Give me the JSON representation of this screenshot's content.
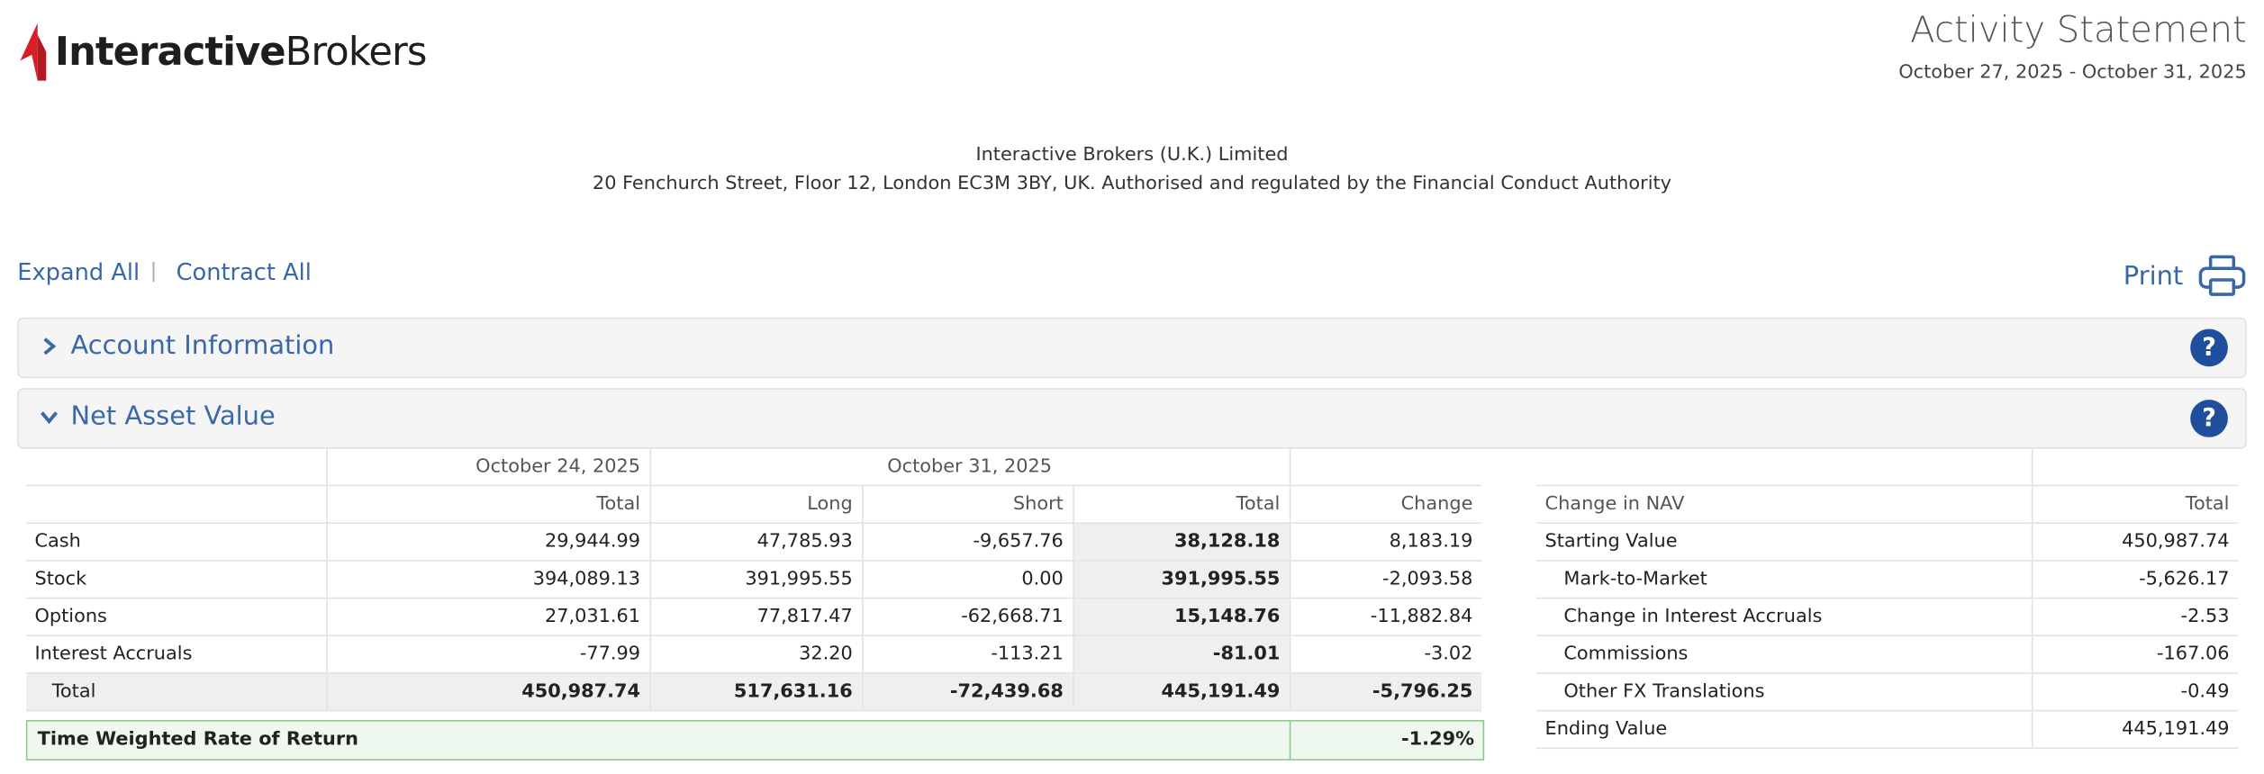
{
  "header": {
    "logo_bold": "Interactive",
    "logo_light": "Brokers",
    "title": "Activity Statement",
    "period": "October 27, 2025 - October 31, 2025"
  },
  "company": {
    "name": "Interactive Brokers (U.K.) Limited",
    "address": "20 Fenchurch Street, Floor 12, London EC3M 3BY, UK. Authorised and regulated by the Financial Conduct Authority"
  },
  "toolbar": {
    "expand": "Expand All",
    "separator": "|",
    "contract": "Contract All",
    "print": "Print"
  },
  "sections": [
    {
      "title": "Account Information",
      "expanded": false,
      "help": "?"
    },
    {
      "title": "Net Asset Value",
      "expanded": true,
      "help": "?"
    }
  ],
  "nav_table": {
    "group_headers": [
      "October 24, 2025",
      "October 31, 2025"
    ],
    "columns": [
      "Total",
      "Long",
      "Short",
      "Total",
      "Change"
    ],
    "rows": [
      [
        "Cash",
        "29,944.99",
        "47,785.93",
        "-9,657.76",
        "38,128.18",
        "8,183.19"
      ],
      [
        "Stock",
        "394,089.13",
        "391,995.55",
        "0.00",
        "391,995.55",
        "-2,093.58"
      ],
      [
        "Options",
        "27,031.61",
        "77,817.47",
        "-62,668.71",
        "15,148.76",
        "-11,882.84"
      ],
      [
        "Interest Accruals",
        "-77.99",
        "32.20",
        "-113.21",
        "-81.01",
        "-3.02"
      ]
    ],
    "total_row": [
      "Total",
      "450,987.74",
      "517,631.16",
      "-72,439.68",
      "445,191.49",
      "-5,796.25"
    ]
  },
  "twr": {
    "label": "Time Weighted Rate of Return",
    "value": "-1.29%"
  },
  "change_table": {
    "columns": [
      "Change in NAV",
      "Total"
    ],
    "rows": [
      {
        "label": "Starting Value",
        "value": "450,987.74",
        "indent": false
      },
      {
        "label": "Mark-to-Market",
        "value": "-5,626.17",
        "indent": true
      },
      {
        "label": "Change in Interest Accruals",
        "value": "-2.53",
        "indent": true
      },
      {
        "label": "Commissions",
        "value": "-167.06",
        "indent": true
      },
      {
        "label": "Other FX Translations",
        "value": "-0.49",
        "indent": true
      },
      {
        "label": "Ending Value",
        "value": "445,191.49",
        "indent": false
      }
    ]
  }
}
